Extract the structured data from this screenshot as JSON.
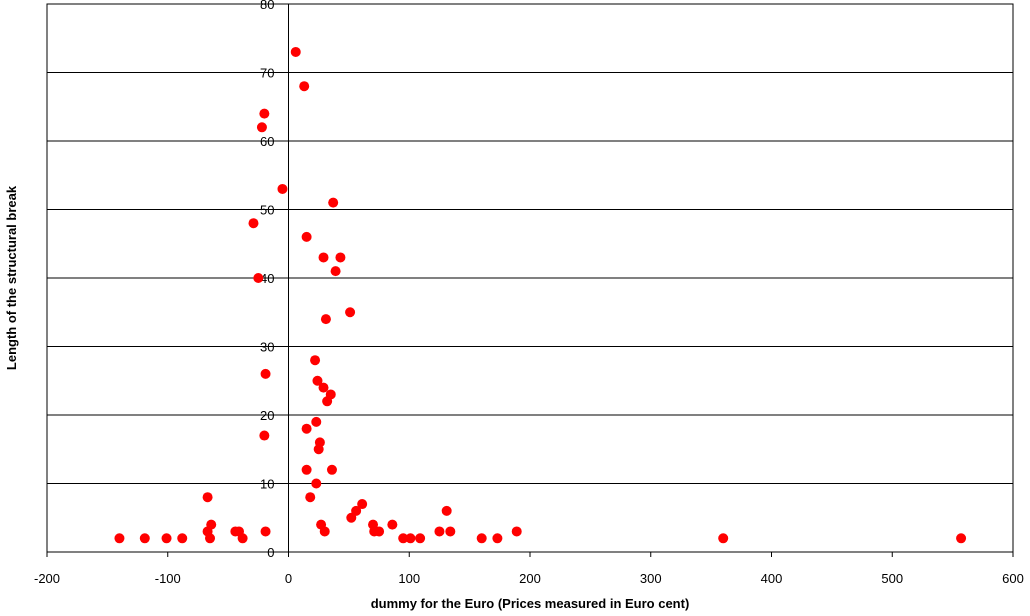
{
  "chart_data": {
    "type": "scatter",
    "x_label": "dummy for the Euro (Prices measured in Euro cent)",
    "y_label": "Length of the structural break",
    "color": "#ff0000",
    "grid": true,
    "xlim": [
      -200,
      600
    ],
    "xticks": [
      -200,
      -100,
      0,
      100,
      200,
      300,
      400,
      500,
      600
    ],
    "ylim": [
      0,
      80
    ],
    "yticks": [
      0,
      10,
      20,
      30,
      40,
      50,
      60,
      70,
      80
    ],
    "x": [
      -140,
      -119,
      -101,
      -88,
      -67,
      -67,
      -65,
      -64,
      -44,
      -41,
      -38,
      -19,
      -20,
      -19,
      -25,
      -29,
      -5,
      -22,
      -20,
      6,
      13,
      15,
      37,
      29,
      43,
      39,
      51,
      31,
      22,
      24,
      29,
      35,
      32,
      23,
      15,
      26,
      25,
      15,
      36,
      23,
      18,
      27,
      30,
      52,
      56,
      61,
      70,
      71,
      75,
      86,
      95,
      101,
      109,
      125,
      131,
      134,
      160,
      173,
      189,
      360,
      557
    ],
    "y": [
      2,
      2,
      2,
      2,
      8,
      3,
      2,
      4,
      3,
      3,
      2,
      3,
      17,
      26,
      40,
      48,
      53,
      62,
      64,
      73,
      68,
      46,
      51,
      43,
      43,
      41,
      35,
      34,
      28,
      25,
      24,
      23,
      22,
      19,
      18,
      16,
      15,
      12,
      12,
      10,
      8,
      4,
      3,
      5,
      6,
      7,
      4,
      3,
      3,
      4,
      2,
      2,
      2,
      3,
      6,
      3,
      2,
      2,
      3,
      2,
      2
    ]
  }
}
